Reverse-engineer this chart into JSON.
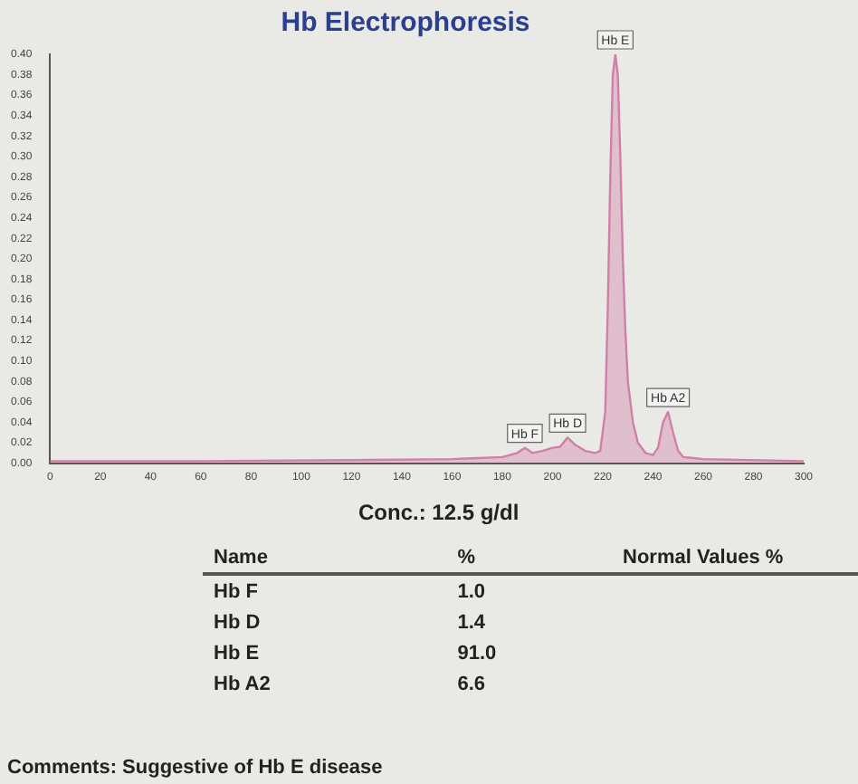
{
  "chart_data": {
    "type": "area",
    "title": "Hb Electrophoresis",
    "x": [
      0,
      60,
      120,
      160,
      180,
      186,
      189,
      192,
      196,
      200,
      203,
      206,
      209,
      213,
      217,
      219,
      221,
      222,
      223,
      224,
      225,
      226,
      227,
      228,
      229,
      230,
      232,
      234,
      237,
      240,
      242,
      244,
      246,
      248,
      250,
      252,
      260,
      300
    ],
    "series": [
      {
        "color": "#d27fa8",
        "values": [
          0.002,
          0.002,
          0.003,
          0.004,
          0.006,
          0.01,
          0.015,
          0.01,
          0.012,
          0.015,
          0.016,
          0.025,
          0.018,
          0.012,
          0.01,
          0.012,
          0.05,
          0.15,
          0.28,
          0.38,
          0.4,
          0.38,
          0.3,
          0.2,
          0.13,
          0.08,
          0.04,
          0.02,
          0.01,
          0.008,
          0.015,
          0.04,
          0.05,
          0.03,
          0.012,
          0.006,
          0.004,
          0.002
        ]
      }
    ],
    "xlim": [
      0,
      300
    ],
    "xticks": [
      0,
      20,
      40,
      60,
      80,
      100,
      120,
      140,
      160,
      180,
      200,
      220,
      240,
      260,
      280,
      300
    ],
    "ylim": [
      0,
      0.4
    ],
    "yticks": [
      {
        "value": 0,
        "label": "0.00"
      },
      {
        "value": 0.02,
        "label": "0.02"
      },
      {
        "value": 0.04,
        "label": "0.04"
      },
      {
        "value": 0.06,
        "label": "0.06"
      },
      {
        "value": 0.08,
        "label": "0.08"
      },
      {
        "value": 0.1,
        "label": "0.10"
      },
      {
        "value": 0.12,
        "label": "0.12"
      },
      {
        "value": 0.14,
        "label": "0.14"
      },
      {
        "value": 0.16,
        "label": "0.16"
      },
      {
        "value": 0.18,
        "label": "0.18"
      },
      {
        "value": 0.2,
        "label": "0.20"
      },
      {
        "value": 0.22,
        "label": "0.22"
      },
      {
        "value": 0.24,
        "label": "0.24"
      },
      {
        "value": 0.26,
        "label": "0.26"
      },
      {
        "value": 0.28,
        "label": "0.28"
      },
      {
        "value": 0.3,
        "label": "0.30"
      },
      {
        "value": 0.32,
        "label": "0.32"
      },
      {
        "value": 0.34,
        "label": "0.34"
      },
      {
        "value": 0.36,
        "label": "0.36"
      },
      {
        "value": 0.38,
        "label": "0.38"
      },
      {
        "value": 0.4,
        "label": "0.40"
      }
    ],
    "grid": false,
    "legend": false,
    "annotations": [
      {
        "text": "Hb F",
        "x": 189,
        "y": 0.015
      },
      {
        "text": "Hb D",
        "x": 206,
        "y": 0.025
      },
      {
        "text": "Hb E",
        "x": 225,
        "y": 0.4
      },
      {
        "text": "Hb A2",
        "x": 246,
        "y": 0.05
      },
      "Conc.: 12.5 g/dl",
      "Name",
      "%",
      "Normal Values %",
      "Hb F",
      "1.0",
      "Hb D",
      "1.4",
      "Hb E",
      "91.0",
      "Hb A2",
      "6.6",
      "Comments: Suggestive of Hb E disease"
    ]
  }
}
